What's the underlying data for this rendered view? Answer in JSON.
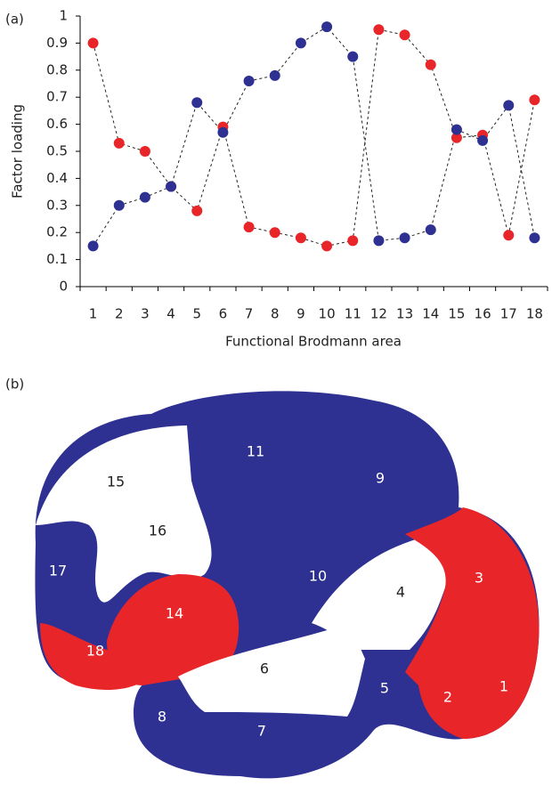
{
  "panel_a_label": "(a)",
  "chart_data": {
    "type": "line",
    "x_label": "Functional Brodmann area",
    "y_label": "Factor loading",
    "categories": [
      "1",
      "2",
      "3",
      "4",
      "5",
      "6",
      "7",
      "8",
      "9",
      "10",
      "11",
      "12",
      "13",
      "14",
      "15",
      "16",
      "17",
      "18"
    ],
    "series": [
      {
        "color": "#e8262a",
        "values": [
          0.9,
          0.53,
          0.5,
          0.37,
          0.28,
          0.59,
          0.22,
          0.2,
          0.18,
          0.15,
          0.17,
          0.95,
          0.93,
          0.82,
          0.55,
          0.56,
          0.19,
          0.69
        ]
      },
      {
        "color": "#2e3192",
        "values": [
          0.15,
          0.3,
          0.33,
          0.37,
          0.68,
          0.57,
          0.76,
          0.78,
          0.9,
          0.96,
          0.85,
          0.17,
          0.18,
          0.21,
          0.58,
          0.54,
          0.67,
          0.18
        ]
      }
    ],
    "ylim": [
      0,
      1
    ],
    "yticks": [
      0,
      0.1,
      0.2,
      0.3,
      0.4,
      0.5,
      0.6,
      0.7,
      0.8,
      0.9,
      1
    ],
    "line_style": "dashed"
  },
  "diagram": {
    "label": "(b)",
    "regions": [
      "1",
      "2",
      "3",
      "4",
      "5",
      "6",
      "7",
      "8",
      "9",
      "10",
      "11",
      "14",
      "15",
      "16",
      "17",
      "18"
    ]
  }
}
